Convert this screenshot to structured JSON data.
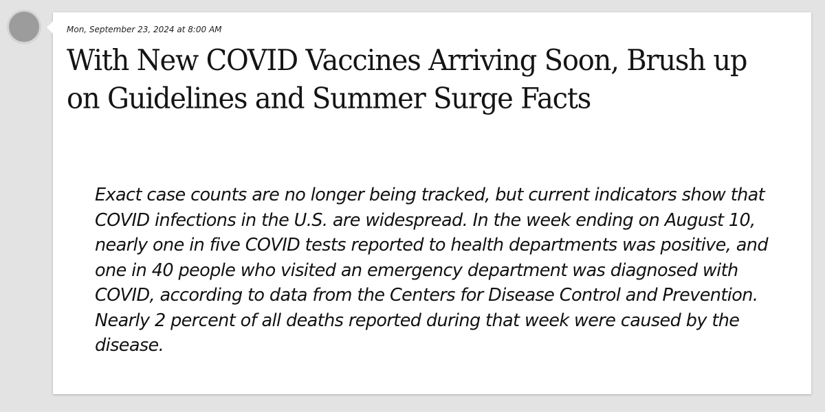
{
  "post": {
    "timestamp": "Mon, September 23, 2024 at 8:00 AM",
    "headline": "With New COVID Vaccines Arriving Soon, Brush up on Guidelines and Summer Surge Facts",
    "quote": "Exact case counts are no longer being tracked, but current indicators show that COVID infections in the U.S. are widespread. In the week ending on August 10, nearly one in five COVID tests reported to health departments was positive, and one in 40 people who visited an emergency department was diagnosed with COVID, according to data from the Centers for Disease Control and Prevention. Nearly 2 percent of all deaths reported during that week were caused by the disease."
  },
  "colors": {
    "page_background": "#e3e3e3",
    "card_background": "#ffffff",
    "avatar": "#9c9c9c",
    "text": "#141414"
  }
}
